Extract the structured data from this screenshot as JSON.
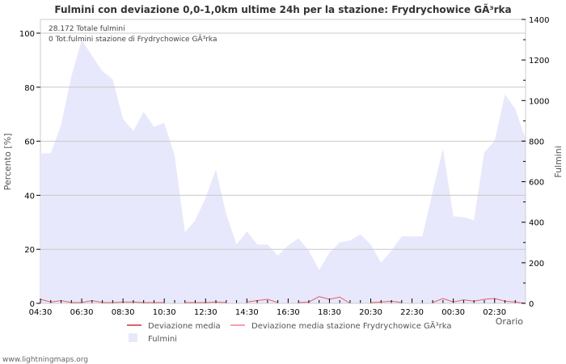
{
  "chart_data": {
    "type": "area",
    "title": "Fulmini con deviazione 0,0-1,0km ultime 24h per la stazione: Frydrychowice GÃ³rka",
    "xlabel": "Orario",
    "ylabel_left": "Percento   [%]",
    "ylabel_right": "Fulmini",
    "ylim_left": [
      0,
      100
    ],
    "ylim_right": [
      0,
      1400
    ],
    "yticks_left": [
      0,
      20,
      40,
      60,
      80,
      100
    ],
    "yticks_right": [
      0,
      200,
      400,
      600,
      800,
      1000,
      1200,
      1400
    ],
    "x_tick_labels": [
      "04:30",
      "06:30",
      "08:30",
      "10:30",
      "12:30",
      "14:30",
      "16:30",
      "18:30",
      "20:30",
      "22:30",
      "00:30",
      "02:30"
    ],
    "grid": true,
    "legend_position": "bottom",
    "annotations": [
      "28.172 Totale fulmini",
      "0 Tot.fulmini stazione di Frydrychowice GÃ³rka"
    ],
    "series": [
      {
        "name": "Deviazione media",
        "axis": "left",
        "type": "line",
        "color": "#e0606a",
        "values": [
          1.5,
          0.5,
          1.0,
          0.3,
          0.3,
          1.0,
          0.3,
          0.3,
          0.5,
          0.5,
          0.3,
          0.3,
          0.3,
          null,
          0.3,
          0.3,
          0.3,
          0.5,
          0.3,
          null,
          0.5,
          1.0,
          1.5,
          0.3,
          null,
          0.3,
          0.5,
          2.5,
          1.5,
          2.3,
          0.0,
          null,
          0.3,
          0.5,
          0.8,
          0.3,
          null,
          null,
          0.3,
          1.8,
          0.5,
          1.3,
          0.8,
          1.5,
          1.8,
          0.8,
          0.5,
          0.0
        ]
      },
      {
        "name": "Deviazione media stazione Frydrychowice GÃ³rka",
        "axis": "left",
        "type": "line",
        "color": "#f4a3a8",
        "values": []
      },
      {
        "name": "Fulmini",
        "axis": "right",
        "type": "area",
        "color": "#e8e8fc",
        "values": [
          740,
          740,
          880,
          1120,
          1300,
          1220,
          1145,
          1105,
          910,
          850,
          945,
          870,
          890,
          730,
          350,
          410,
          520,
          660,
          440,
          290,
          355,
          290,
          290,
          235,
          285,
          320,
          260,
          165,
          250,
          300,
          310,
          340,
          290,
          200,
          260,
          330,
          330,
          330,
          550,
          765,
          430,
          425,
          410,
          745,
          800,
          1030,
          960,
          810
        ]
      }
    ]
  },
  "legend": {
    "item1": "Deviazione media",
    "item2": "Deviazione media stazione Frydrychowice GÃ³rka",
    "item3": "Fulmini"
  },
  "footer": "www.lightningmaps.org"
}
